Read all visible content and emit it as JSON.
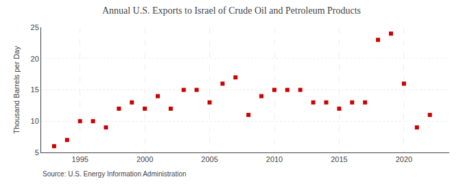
{
  "chart_data": {
    "type": "scatter",
    "title": "Annual U.S. Exports to Israel of Crude Oil and Petroleum Products",
    "ylabel": "Thousand Barrels per Day",
    "annotations": [
      "Source: U.S. Energy Information Administration"
    ],
    "x": [
      1993,
      1994,
      1995,
      1996,
      1997,
      1998,
      1999,
      2000,
      2001,
      2002,
      2003,
      2004,
      2005,
      2006,
      2007,
      2008,
      2009,
      2010,
      2011,
      2012,
      2013,
      2014,
      2015,
      2016,
      2017,
      2018,
      2019,
      2020,
      2021,
      2022
    ],
    "values": [
      6.0,
      7.0,
      10.0,
      10.0,
      9.0,
      12.0,
      13.0,
      12.0,
      14.0,
      12.0,
      15.0,
      15.0,
      13.0,
      16.0,
      17.0,
      11.0,
      14.0,
      15.0,
      15.0,
      15.0,
      13.0,
      13.0,
      12.0,
      13.0,
      13.0,
      23.0,
      24.0,
      16.0,
      9.0,
      11.0
    ],
    "color": "#cc0000",
    "marker": "square",
    "xlim": [
      1992.0,
      2023.5
    ],
    "xticks": [
      1995,
      2000,
      2005,
      2010,
      2015,
      2020
    ],
    "ylim": [
      5,
      25
    ],
    "yticks": [
      5,
      10,
      15,
      20,
      25
    ],
    "grid": true
  }
}
